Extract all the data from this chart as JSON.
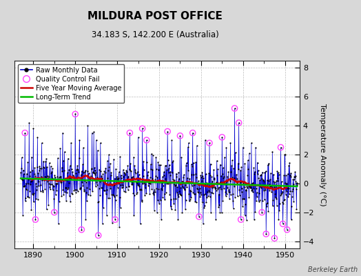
{
  "title": "MILDURA POST OFFICE",
  "subtitle": "34.183 S, 142.200 E (Australia)",
  "ylabel": "Temperature Anomaly (°C)",
  "watermark": "Berkeley Earth",
  "ylim": [
    -4.5,
    8.5
  ],
  "xlim": [
    1885.5,
    1953.5
  ],
  "xticks": [
    1890,
    1900,
    1910,
    1920,
    1930,
    1940,
    1950
  ],
  "yticks": [
    -4,
    -2,
    0,
    2,
    4,
    6,
    8
  ],
  "bg_color": "#d8d8d8",
  "plot_bg_color": "#ffffff",
  "raw_line_color": "#0000cc",
  "raw_dot_color": "#000000",
  "qc_fail_color": "#ff44ff",
  "moving_avg_color": "#cc0000",
  "trend_color": "#00bb00",
  "start_year": 1887,
  "seed": 42
}
